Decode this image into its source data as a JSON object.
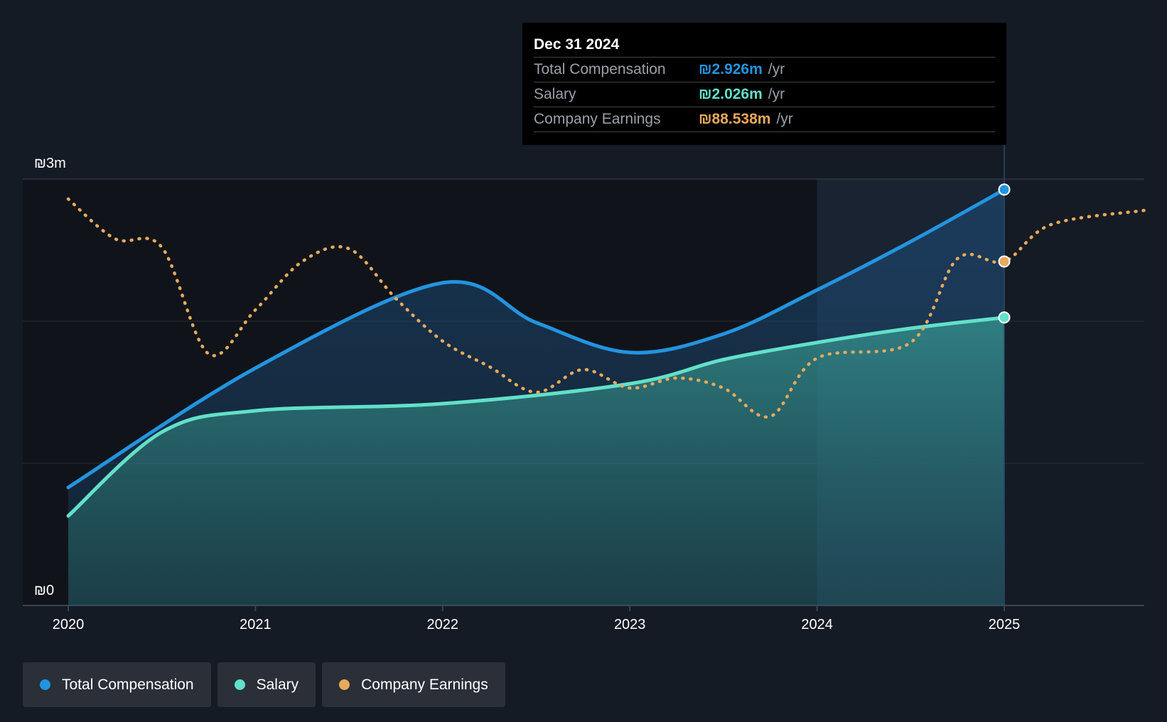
{
  "chart_data": {
    "type": "area",
    "y_axis": {
      "min": 0,
      "max": 3,
      "unit": "m",
      "labels": [
        "₪3m",
        "₪0"
      ]
    },
    "x_axis": {
      "ticks": [
        2020,
        2021,
        2022,
        2023,
        2024,
        2025
      ]
    },
    "highlight_range": [
      2024,
      2025
    ],
    "series": [
      {
        "name": "Total Compensation",
        "color": "#2394df",
        "style": "solid-area",
        "points": [
          [
            2020.0,
            0.83
          ],
          [
            2021.0,
            1.67
          ],
          [
            2022.0,
            2.27
          ],
          [
            2022.5,
            1.99
          ],
          [
            2023.0,
            1.78
          ],
          [
            2023.5,
            1.91
          ],
          [
            2024.0,
            2.22
          ],
          [
            2024.5,
            2.56
          ],
          [
            2025.0,
            2.926
          ]
        ]
      },
      {
        "name": "Salary",
        "color": "#62e0c9",
        "style": "solid-area",
        "points": [
          [
            2020.0,
            0.63
          ],
          [
            2020.5,
            1.22
          ],
          [
            2021.0,
            1.37
          ],
          [
            2022.0,
            1.42
          ],
          [
            2023.0,
            1.56
          ],
          [
            2023.5,
            1.73
          ],
          [
            2024.0,
            1.85
          ],
          [
            2024.5,
            1.95
          ],
          [
            2025.0,
            2.026
          ]
        ]
      },
      {
        "name": "Company Earnings",
        "color": "#e8a95c",
        "style": "dotted",
        "points": [
          [
            2020.0,
            2.86
          ],
          [
            2020.25,
            2.58
          ],
          [
            2020.5,
            2.52
          ],
          [
            2020.75,
            1.77
          ],
          [
            2021.0,
            2.08
          ],
          [
            2021.25,
            2.42
          ],
          [
            2021.5,
            2.51
          ],
          [
            2021.75,
            2.16
          ],
          [
            2022.0,
            1.86
          ],
          [
            2022.25,
            1.68
          ],
          [
            2022.5,
            1.5
          ],
          [
            2022.75,
            1.66
          ],
          [
            2023.0,
            1.53
          ],
          [
            2023.25,
            1.6
          ],
          [
            2023.5,
            1.53
          ],
          [
            2023.75,
            1.33
          ],
          [
            2024.0,
            1.74
          ],
          [
            2024.5,
            1.85
          ],
          [
            2024.75,
            2.44
          ],
          [
            2025.0,
            2.42
          ],
          [
            2025.25,
            2.68
          ],
          [
            2025.75,
            2.78
          ]
        ]
      }
    ]
  },
  "tooltip": {
    "date": "Dec 31 2024",
    "rows": [
      {
        "label": "Total Compensation",
        "value": "₪2.926m",
        "unit": "/yr",
        "color": "#2394df"
      },
      {
        "label": "Salary",
        "value": "₪2.026m",
        "unit": "/yr",
        "color": "#62e0c9"
      },
      {
        "label": "Company Earnings",
        "value": "₪88.538m",
        "unit": "/yr",
        "color": "#e8a95c"
      }
    ]
  },
  "legend": [
    {
      "label": "Total Compensation",
      "color": "#2394df"
    },
    {
      "label": "Salary",
      "color": "#62e0c9"
    },
    {
      "label": "Company Earnings",
      "color": "#e8a95c"
    }
  ]
}
